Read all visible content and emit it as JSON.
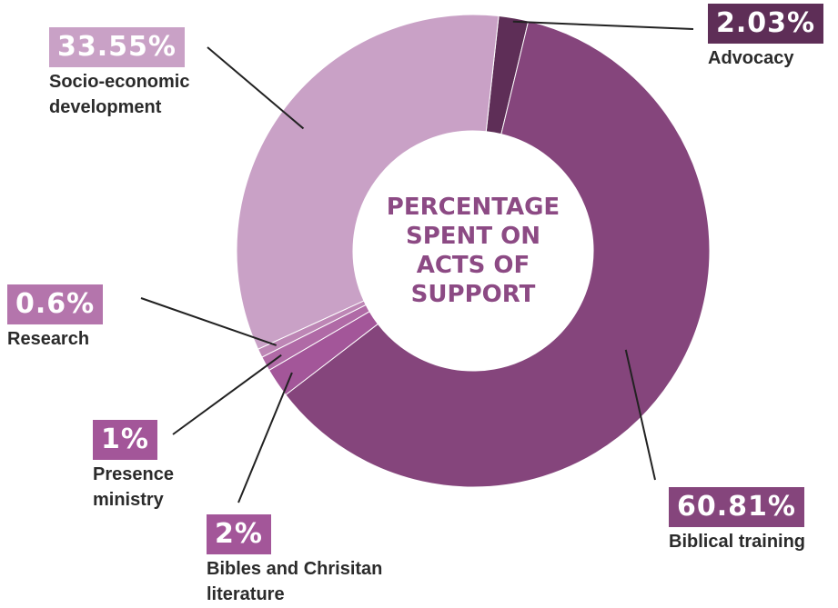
{
  "chart_data": {
    "type": "pie",
    "donut": true,
    "center_title": [
      "PERCENTAGE",
      "SPENT ON",
      "ACTS OF",
      "SUPPORT"
    ],
    "slices": [
      {
        "label": "Advocacy",
        "value": 2.03,
        "display": "2.03%",
        "color": "#5e2e57",
        "badge_color": "#5e2e57"
      },
      {
        "label": "Biblical training",
        "value": 60.81,
        "display": "60.81%",
        "color": "#85457c",
        "badge_color": "#85457c"
      },
      {
        "label": "Bibles and Chrisitan literature",
        "value": 2.0,
        "display": "2%",
        "color": "#a35699",
        "badge_color": "#a35699"
      },
      {
        "label": "Presence ministry",
        "value": 1.0,
        "display": "1%",
        "color": "#b06aa6",
        "badge_color": "#a35699"
      },
      {
        "label": "Research",
        "value": 0.6,
        "display": "0.6%",
        "color": "#bd86b5",
        "badge_color": "#b475ac"
      },
      {
        "label": "Socio-economic development",
        "value": 33.55,
        "display": "33.55%",
        "color": "#c9a1c6",
        "badge_color": "#c9a1c6"
      }
    ]
  }
}
